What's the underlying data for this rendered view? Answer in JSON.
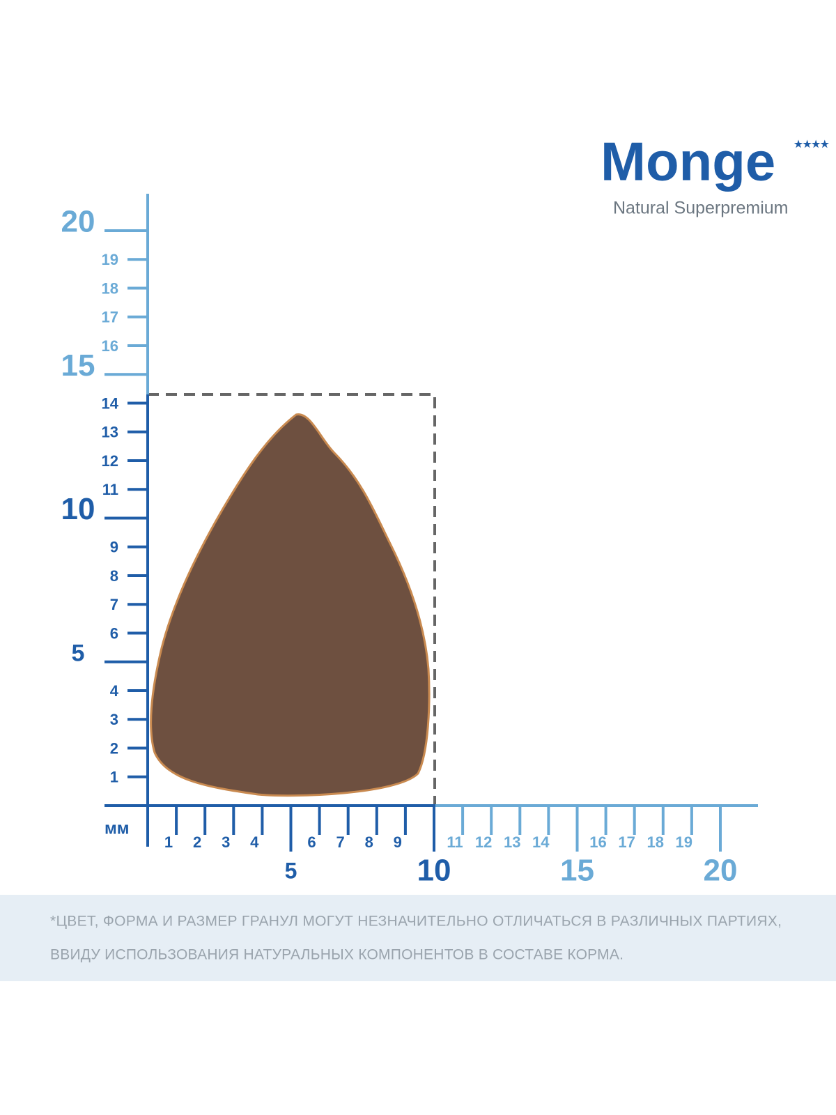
{
  "logo": {
    "brand": "Monge",
    "tagline": "Natural Superpremium"
  },
  "ruler": {
    "unit": "мм",
    "vertical_labels": [
      1,
      2,
      3,
      4,
      5,
      6,
      7,
      8,
      9,
      10,
      11,
      12,
      13,
      14,
      15,
      16,
      17,
      18,
      19,
      20
    ],
    "horizontal_labels": [
      1,
      2,
      3,
      4,
      5,
      6,
      7,
      8,
      9,
      10,
      11,
      12,
      13,
      14,
      15,
      16,
      17,
      18,
      19,
      20
    ]
  },
  "disclaimer": [
    "*ЦВЕТ, ФОРМА И РАЗМЕР ГРАНУЛ МОГУТ НЕЗНАЧИТЕЛЬНО ОТЛИЧАТЬСЯ В РАЗЛИЧНЫХ ПАРТИЯХ,",
    "ВВИДУ ИСПОЛЬЗОВАНИЯ НАТУРАЛЬНЫХ КОМПОНЕНТОВ В СОСТАВЕ КОРМА."
  ]
}
